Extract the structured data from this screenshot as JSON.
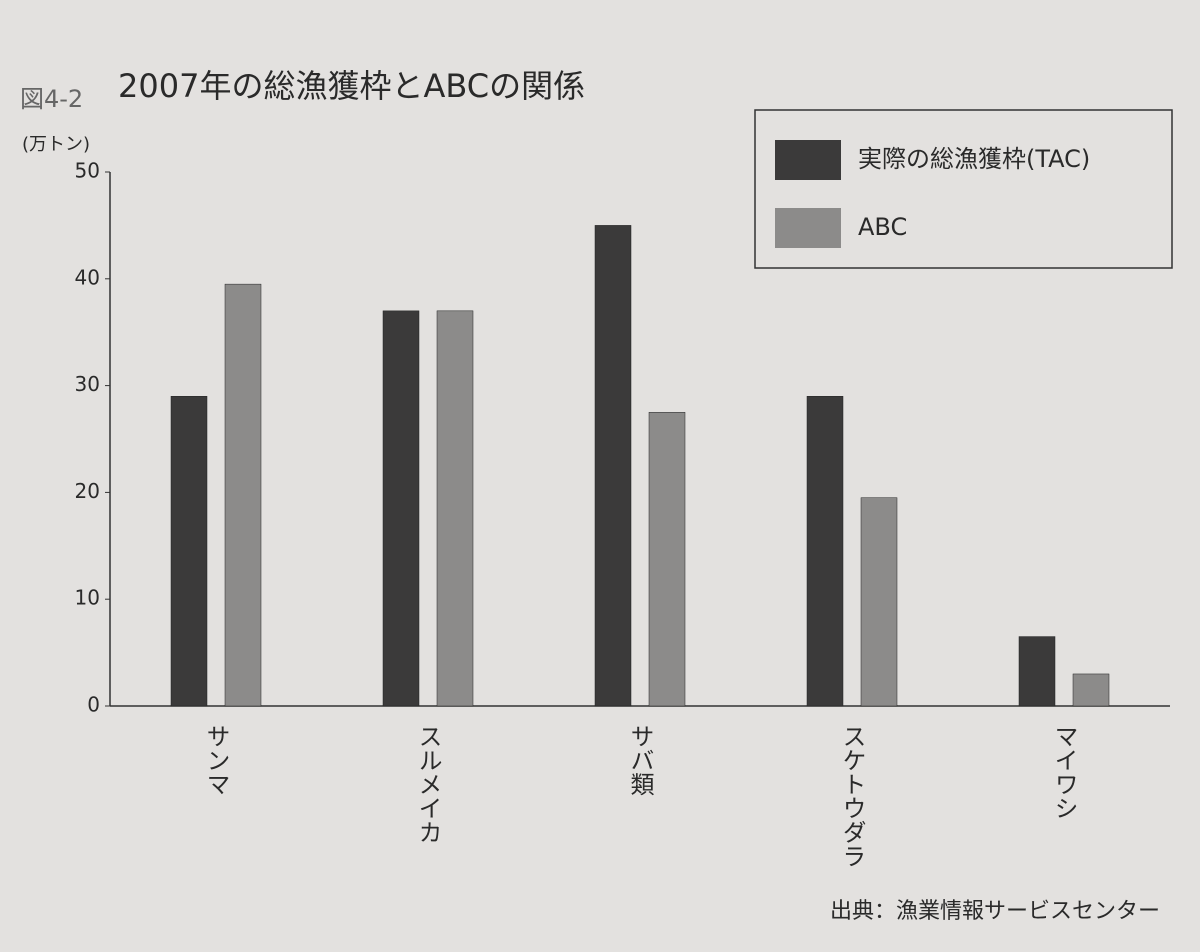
{
  "chart_data": {
    "type": "bar",
    "figure_label": "図4-2",
    "title": "2007年の総漁獲枠とABCの関係",
    "y_label": "(万トン)",
    "categories": [
      "サンマ",
      "スルメイカ",
      "サバ類",
      "スケトウダラ",
      "マイワシ"
    ],
    "series": [
      {
        "name": "実際の総漁獲枠(TAC)",
        "color": "#3b3a3a",
        "values": [
          29,
          37,
          45,
          29,
          6.5
        ]
      },
      {
        "name": "ABC",
        "color": "#8c8b8a",
        "values": [
          39.5,
          37,
          27.5,
          19.5,
          3
        ]
      }
    ],
    "ylim": [
      0,
      50
    ],
    "yticks": [
      0,
      10,
      20,
      30,
      40,
      50
    ],
    "grid": false,
    "legend": "upper right",
    "source": "出典：漁業情報サービスセンター"
  }
}
